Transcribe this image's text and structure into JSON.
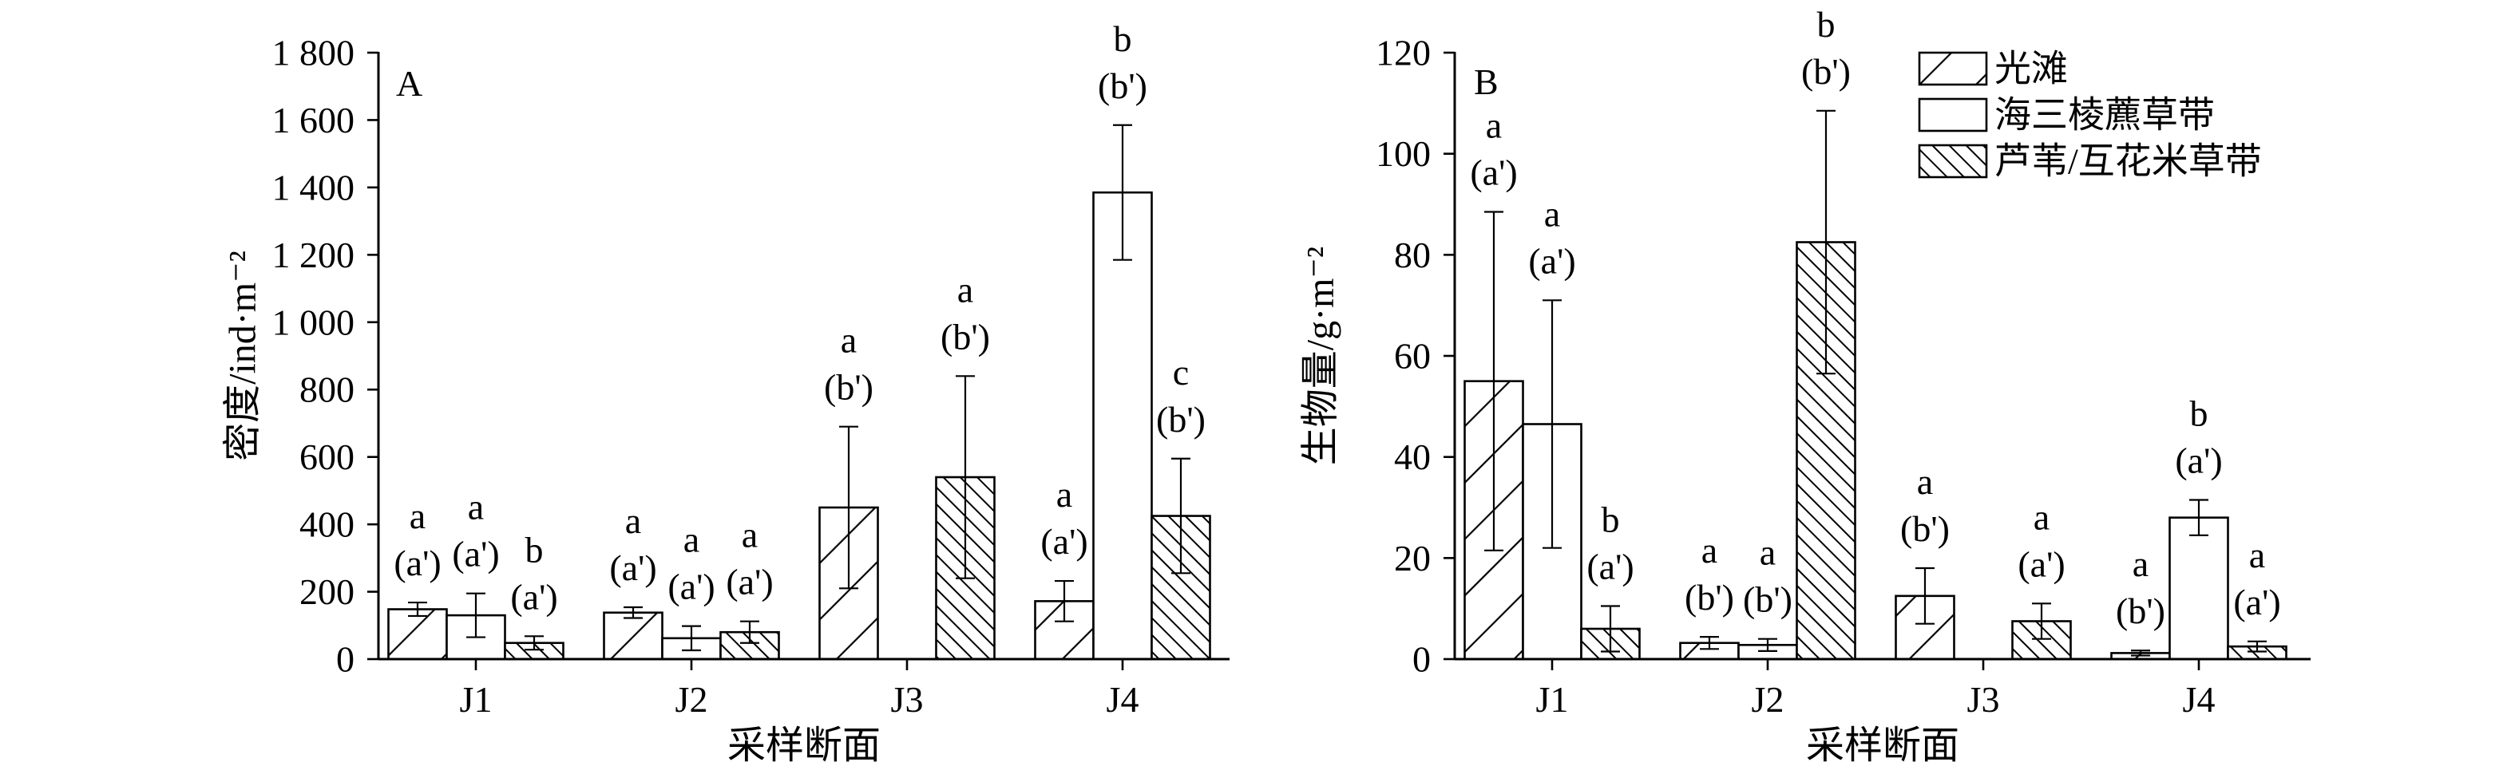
{
  "colors": {
    "ink": "#000000",
    "background": "#ffffff"
  },
  "chart_data": [
    {
      "type": "bar",
      "panel_label": "A",
      "categories": [
        "J1",
        "J2",
        "J3",
        "J4"
      ],
      "xlabel": "采样断面",
      "ylabel": "密度/ind·m⁻²",
      "ylim": [
        0,
        1800
      ],
      "yticks": [
        0,
        200,
        400,
        600,
        800,
        1000,
        1200,
        1400,
        1600,
        1800
      ],
      "ytick_labels": [
        "0",
        "200",
        "400",
        "600",
        "800",
        "1 000",
        "1 200",
        "1 400",
        "1 600",
        "1 800"
      ],
      "grid": false,
      "series": [
        {
          "pattern": "hatch-forward",
          "values": [
            148,
            138,
            450,
            172
          ],
          "errors": [
            20,
            16,
            240,
            60
          ],
          "significance": [
            [
              "a",
              "(a')"
            ],
            [
              "a",
              "(a')"
            ],
            [
              "a",
              "(b')"
            ],
            [
              "a",
              "(a')"
            ]
          ]
        },
        {
          "pattern": "none",
          "values": [
            130,
            62,
            null,
            1385
          ],
          "errors": [
            65,
            36,
            null,
            200
          ],
          "significance": [
            [
              "a",
              "(a')"
            ],
            [
              "a",
              "(a')"
            ],
            null,
            [
              "b",
              "(b')"
            ]
          ]
        },
        {
          "pattern": "hatch-backward",
          "values": [
            48,
            80,
            540,
            425
          ],
          "errors": [
            20,
            32,
            300,
            170
          ],
          "significance": [
            [
              "b",
              "(a')"
            ],
            [
              "a",
              "(a')"
            ],
            [
              "a",
              "(b')"
            ],
            [
              "c",
              "(b')"
            ]
          ]
        }
      ]
    },
    {
      "type": "bar",
      "panel_label": "B",
      "categories": [
        "J1",
        "J2",
        "J3",
        "J4"
      ],
      "xlabel": "采样断面",
      "ylabel": "生物量/g·m⁻²",
      "ylim": [
        0,
        120
      ],
      "yticks": [
        0,
        20,
        40,
        60,
        80,
        100,
        120
      ],
      "ytick_labels": [
        "0",
        "20",
        "40",
        "60",
        "80",
        "100",
        "120"
      ],
      "grid": false,
      "legend": {
        "placement": "top-right"
      },
      "series": [
        {
          "name": "光滩",
          "pattern": "hatch-forward",
          "values": [
            55,
            3.2,
            12.5,
            1.2
          ],
          "errors": [
            33.5,
            1.2,
            5.5,
            0.5
          ],
          "significance": [
            [
              "a",
              "(a')"
            ],
            [
              "a",
              "(b')"
            ],
            [
              "a",
              "(b')"
            ],
            [
              "a",
              "(b')"
            ]
          ]
        },
        {
          "name": "海三棱藨草带",
          "pattern": "none",
          "values": [
            46.5,
            2.8,
            null,
            28
          ],
          "errors": [
            24.5,
            1.2,
            null,
            3.5
          ],
          "significance": [
            [
              "a",
              "(a')"
            ],
            [
              "a",
              "(b')"
            ],
            null,
            [
              "b",
              "(a')"
            ]
          ]
        },
        {
          "name": "芦苇/互花米草带",
          "pattern": "hatch-backward",
          "values": [
            6,
            82.5,
            7.5,
            2.5
          ],
          "errors": [
            4.5,
            26,
            3.5,
            1
          ],
          "significance": [
            [
              "b",
              "(a')"
            ],
            [
              "b",
              "(b')"
            ],
            [
              "a",
              "(a')"
            ],
            [
              "a",
              "(a')"
            ]
          ]
        }
      ]
    }
  ]
}
